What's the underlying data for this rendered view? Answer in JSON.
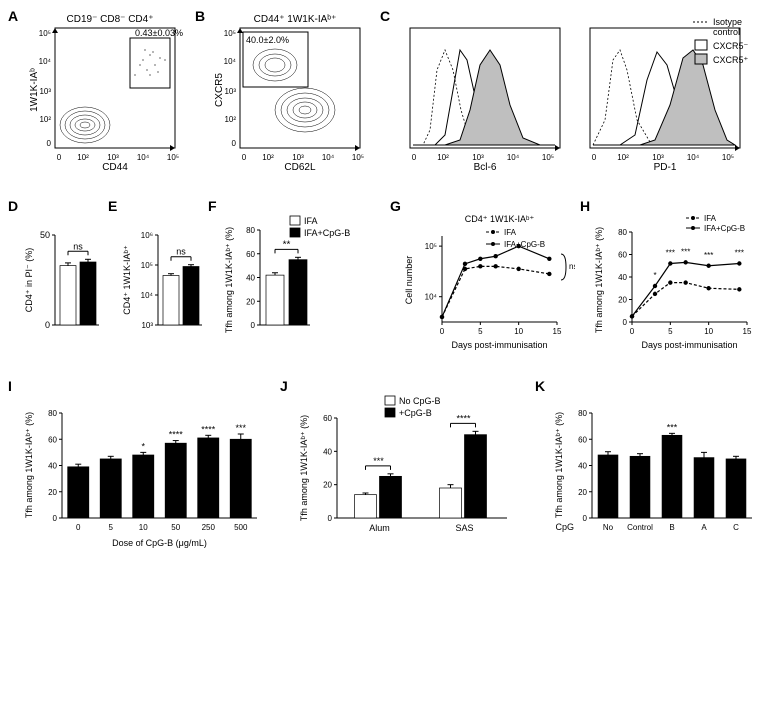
{
  "font_family": "Arial",
  "colors": {
    "black": "#000000",
    "white": "#ffffff",
    "fill_cxcr5": "#bfbfbf",
    "dark": "#000000"
  },
  "panelA": {
    "label": "A",
    "title": "CD19⁻ CD8⁻ CD4⁺",
    "x": "CD44",
    "y": "1W1K-IAᵇ",
    "gate": "0.43±0.03%",
    "xticks": [
      "0",
      "10²",
      "10³",
      "10⁴",
      "10⁵"
    ],
    "yticks": [
      "0",
      "10²",
      "10³",
      "10⁴",
      "10⁵"
    ]
  },
  "panelB": {
    "label": "B",
    "title": "CD44⁺ 1W1K-IAᵇ⁺",
    "x": "CD62L",
    "y": "CXCR5",
    "gate": "40.0±2.0%",
    "xticks": [
      "0",
      "10²",
      "10³",
      "10⁴",
      "10⁵"
    ],
    "yticks": [
      "0",
      "10²",
      "10³",
      "10⁴",
      "10⁵"
    ]
  },
  "panelC": {
    "label": "C",
    "x1": "Bcl-6",
    "x2": "PD-1",
    "xticks": [
      "0",
      "10²",
      "10³",
      "10⁴",
      "10⁵"
    ],
    "legend": {
      "isotype": "Isotype control",
      "cxcr5neg": "CXCR5⁻",
      "cxcr5pos": "CXCR5⁺"
    }
  },
  "panelD": {
    "label": "D",
    "ylabel": "CD4⁺ in PI⁻ (%)",
    "ylim": [
      0,
      50
    ],
    "yticks": [
      0,
      50
    ],
    "bars": [
      {
        "fill": "#ffffff",
        "val": 33,
        "err": 1.5
      },
      {
        "fill": "#000000",
        "val": 35,
        "err": 1.5
      }
    ],
    "sig": "ns",
    "legend": null
  },
  "panelE": {
    "label": "E",
    "ylabel": "CD4⁺ 1W1K-IAᵇ⁺",
    "ylim": [
      3,
      6
    ],
    "yticks_log": [
      3,
      4,
      5,
      6
    ],
    "ytick_labels": [
      "10³",
      "10⁴",
      "10⁵",
      "10⁶"
    ],
    "bars": [
      {
        "fill": "#ffffff",
        "val": 4.65,
        "err": 0.06
      },
      {
        "fill": "#000000",
        "val": 4.95,
        "err": 0.06
      }
    ],
    "sig": "ns"
  },
  "panelF": {
    "label": "F",
    "ylabel": "Tfh among 1W1K-IAᵇ⁺ (%)",
    "ylim": [
      0,
      80
    ],
    "yticks": [
      0,
      20,
      40,
      60,
      80
    ],
    "bars": [
      {
        "fill": "#ffffff",
        "val": 42,
        "err": 2
      },
      {
        "fill": "#000000",
        "val": 55,
        "err": 2
      }
    ],
    "sig": "**",
    "legend": [
      {
        "label": "IFA",
        "fill": "#ffffff"
      },
      {
        "label": "IFA+CpG-B",
        "fill": "#000000"
      }
    ]
  },
  "panelG": {
    "label": "G",
    "title": "CD4⁺ 1W1K-IAᵇ⁺",
    "ylabel": "Cell number",
    "xlabel": "Days post-immunisation",
    "xlim": [
      0,
      15
    ],
    "xticks": [
      0,
      5,
      10,
      15
    ],
    "ylim_log": [
      3.5,
      5.2
    ],
    "ytick_labels": [
      "10⁴",
      "10⁵"
    ],
    "ytick_vals": [
      4,
      5
    ],
    "series": [
      {
        "name": "IFA",
        "style": "dash",
        "points": [
          [
            0,
            3.6
          ],
          [
            3,
            4.55
          ],
          [
            5,
            4.6
          ],
          [
            7,
            4.6
          ],
          [
            10,
            4.55
          ],
          [
            14,
            4.45
          ]
        ]
      },
      {
        "name": "IFA+CpG-B",
        "style": "solid",
        "points": [
          [
            0,
            3.6
          ],
          [
            3,
            4.65
          ],
          [
            5,
            4.75
          ],
          [
            7,
            4.8
          ],
          [
            10,
            5.0
          ],
          [
            14,
            4.75
          ]
        ]
      }
    ],
    "sig": "ns"
  },
  "panelH": {
    "label": "H",
    "ylabel": "Tfh among 1W1K-IAᵇ⁺ (%)",
    "xlabel": "Days post-immunisation",
    "xlim": [
      0,
      15
    ],
    "xticks": [
      0,
      5,
      10,
      15
    ],
    "ylim": [
      0,
      80
    ],
    "yticks": [
      0,
      20,
      40,
      60,
      80
    ],
    "series": [
      {
        "name": "IFA",
        "style": "dash",
        "points": [
          [
            0,
            5
          ],
          [
            3,
            25
          ],
          [
            5,
            35
          ],
          [
            7,
            35
          ],
          [
            10,
            30
          ],
          [
            14,
            29
          ]
        ]
      },
      {
        "name": "IFA+CpG-B",
        "style": "solid",
        "points": [
          [
            0,
            5
          ],
          [
            3,
            32
          ],
          [
            5,
            52
          ],
          [
            7,
            53
          ],
          [
            10,
            50
          ],
          [
            14,
            52
          ]
        ]
      }
    ],
    "legend": [
      {
        "label": "IFA",
        "style": "dash"
      },
      {
        "label": "IFA+CpG-B",
        "style": "solid"
      }
    ],
    "sigs": [
      {
        "x": 3,
        "label": "*"
      },
      {
        "x": 5,
        "label": "***"
      },
      {
        "x": 7,
        "label": "***"
      },
      {
        "x": 10,
        "label": "***"
      },
      {
        "x": 14,
        "label": "***"
      }
    ]
  },
  "panelI": {
    "label": "I",
    "ylabel": "Tfh among 1W1K-IAᵇ⁺ (%)",
    "xlabel": "Dose of CpG-B (μg/mL)",
    "ylim": [
      0,
      80
    ],
    "yticks": [
      0,
      20,
      40,
      60,
      80
    ],
    "categories": [
      "0",
      "5",
      "10",
      "50",
      "250",
      "500"
    ],
    "values": [
      39,
      45,
      48,
      57,
      61,
      60
    ],
    "errs": [
      2,
      2,
      2,
      2,
      2,
      4
    ],
    "sigs": [
      "",
      "",
      "*",
      "****",
      "****",
      "***"
    ],
    "bar_fill": "#000000"
  },
  "panelJ": {
    "label": "J",
    "ylabel": "Tfh among 1W1K-IAᵇ⁺ (%)",
    "ylim": [
      0,
      60
    ],
    "yticks": [
      0,
      20,
      40,
      60
    ],
    "groups": [
      "Alum",
      "SAS"
    ],
    "pairs": [
      {
        "vals": [
          14,
          25
        ],
        "errs": [
          1,
          1.5
        ],
        "sig": "***"
      },
      {
        "vals": [
          18,
          50
        ],
        "errs": [
          2,
          2
        ],
        "sig": "****"
      }
    ],
    "legend": [
      {
        "label": "No CpG-B",
        "fill": "#ffffff"
      },
      {
        "label": "+CpG-B",
        "fill": "#000000"
      }
    ]
  },
  "panelK": {
    "label": "K",
    "ylabel": "Tfh among 1W1K-IAᵇ⁺ (%)",
    "xlabel_prefix": "CpG",
    "ylim": [
      0,
      80
    ],
    "yticks": [
      0,
      20,
      40,
      60,
      80
    ],
    "categories": [
      "No",
      "Control",
      "B",
      "A",
      "C"
    ],
    "values": [
      48,
      47,
      63,
      46,
      45
    ],
    "errs": [
      2.5,
      2,
      1.5,
      4,
      2
    ],
    "sigs": [
      "",
      "",
      "***",
      "",
      ""
    ],
    "bar_fill": "#000000"
  }
}
